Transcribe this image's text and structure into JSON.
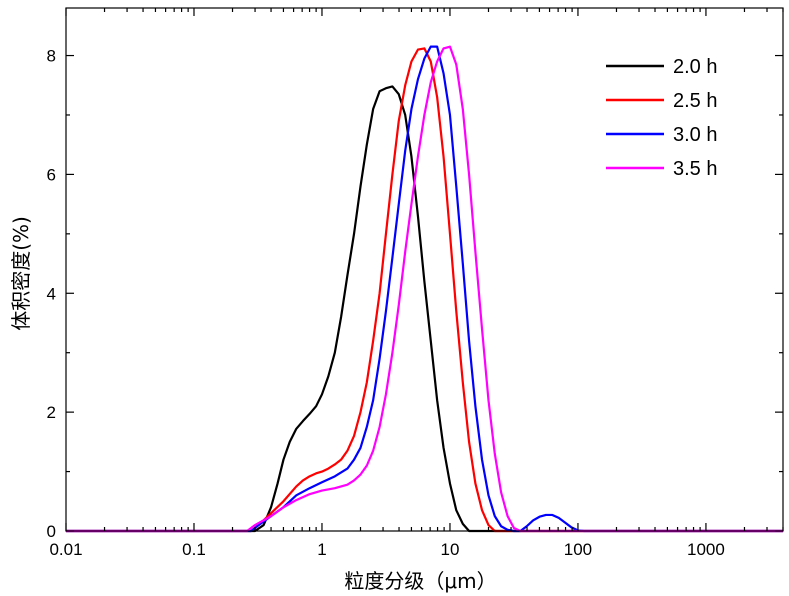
{
  "chart_data": {
    "type": "line",
    "title": "",
    "xlabel": "粒度分级（μm）",
    "ylabel": "体积密度(%)",
    "x_scale": "log",
    "xlim": [
      0.01,
      4000
    ],
    "ylim": [
      0,
      8.8
    ],
    "x_ticks": [
      {
        "value": 0.01,
        "label": "0.01"
      },
      {
        "value": 0.1,
        "label": "0.1"
      },
      {
        "value": 1,
        "label": "1"
      },
      {
        "value": 10,
        "label": "10"
      },
      {
        "value": 100,
        "label": "100"
      },
      {
        "value": 1000,
        "label": "1000"
      }
    ],
    "y_ticks": [
      {
        "value": 0,
        "label": "0"
      },
      {
        "value": 2,
        "label": "2"
      },
      {
        "value": 4,
        "label": "4"
      },
      {
        "value": 6,
        "label": "6"
      },
      {
        "value": 8,
        "label": "8"
      }
    ],
    "grid": false,
    "legend": "top-right",
    "series": [
      {
        "name": "2.0 h",
        "color": "#000000",
        "points": [
          [
            0.01,
            0
          ],
          [
            0.3,
            0
          ],
          [
            0.35,
            0.1
          ],
          [
            0.4,
            0.4
          ],
          [
            0.45,
            0.8
          ],
          [
            0.5,
            1.2
          ],
          [
            0.56,
            1.5
          ],
          [
            0.63,
            1.72
          ],
          [
            0.71,
            1.85
          ],
          [
            0.8,
            1.97
          ],
          [
            0.9,
            2.1
          ],
          [
            1.0,
            2.3
          ],
          [
            1.12,
            2.6
          ],
          [
            1.26,
            3.0
          ],
          [
            1.41,
            3.6
          ],
          [
            1.58,
            4.3
          ],
          [
            1.78,
            5.0
          ],
          [
            2.0,
            5.8
          ],
          [
            2.24,
            6.5
          ],
          [
            2.51,
            7.1
          ],
          [
            2.82,
            7.4
          ],
          [
            3.16,
            7.45
          ],
          [
            3.55,
            7.48
          ],
          [
            3.98,
            7.35
          ],
          [
            4.47,
            7.0
          ],
          [
            5.0,
            6.3
          ],
          [
            5.62,
            5.3
          ],
          [
            6.31,
            4.2
          ],
          [
            7.08,
            3.2
          ],
          [
            7.94,
            2.2
          ],
          [
            8.91,
            1.4
          ],
          [
            10.0,
            0.8
          ],
          [
            11.2,
            0.35
          ],
          [
            12.6,
            0.12
          ],
          [
            14.1,
            0
          ],
          [
            4000,
            0
          ]
        ]
      },
      {
        "name": "2.5 h",
        "color": "#ff0000",
        "points": [
          [
            0.01,
            0
          ],
          [
            0.28,
            0
          ],
          [
            0.32,
            0.1
          ],
          [
            0.4,
            0.3
          ],
          [
            0.5,
            0.5
          ],
          [
            0.63,
            0.75
          ],
          [
            0.71,
            0.85
          ],
          [
            0.8,
            0.92
          ],
          [
            0.9,
            0.97
          ],
          [
            1.0,
            1.0
          ],
          [
            1.12,
            1.05
          ],
          [
            1.26,
            1.12
          ],
          [
            1.41,
            1.2
          ],
          [
            1.58,
            1.35
          ],
          [
            1.78,
            1.6
          ],
          [
            2.0,
            2.0
          ],
          [
            2.24,
            2.5
          ],
          [
            2.51,
            3.2
          ],
          [
            2.82,
            4.0
          ],
          [
            3.16,
            5.0
          ],
          [
            3.55,
            6.0
          ],
          [
            3.98,
            6.9
          ],
          [
            4.47,
            7.5
          ],
          [
            5.0,
            7.9
          ],
          [
            5.62,
            8.1
          ],
          [
            6.31,
            8.12
          ],
          [
            7.08,
            7.9
          ],
          [
            7.94,
            7.3
          ],
          [
            8.91,
            6.3
          ],
          [
            10.0,
            5.0
          ],
          [
            11.2,
            3.7
          ],
          [
            12.6,
            2.5
          ],
          [
            14.1,
            1.5
          ],
          [
            15.8,
            0.8
          ],
          [
            17.8,
            0.35
          ],
          [
            20.0,
            0.1
          ],
          [
            22.4,
            0
          ],
          [
            4000,
            0
          ]
        ]
      },
      {
        "name": "3.0 h",
        "color": "#0000ff",
        "points": [
          [
            0.01,
            0
          ],
          [
            0.28,
            0
          ],
          [
            0.32,
            0.1
          ],
          [
            0.4,
            0.25
          ],
          [
            0.5,
            0.4
          ],
          [
            0.63,
            0.6
          ],
          [
            0.8,
            0.72
          ],
          [
            1.0,
            0.82
          ],
          [
            1.26,
            0.92
          ],
          [
            1.58,
            1.05
          ],
          [
            1.78,
            1.2
          ],
          [
            2.0,
            1.4
          ],
          [
            2.24,
            1.75
          ],
          [
            2.51,
            2.2
          ],
          [
            2.82,
            2.9
          ],
          [
            3.16,
            3.7
          ],
          [
            3.55,
            4.6
          ],
          [
            3.98,
            5.5
          ],
          [
            4.47,
            6.4
          ],
          [
            5.0,
            7.1
          ],
          [
            5.62,
            7.6
          ],
          [
            6.31,
            7.95
          ],
          [
            7.08,
            8.15
          ],
          [
            7.94,
            8.15
          ],
          [
            8.91,
            7.7
          ],
          [
            10.0,
            7.0
          ],
          [
            11.2,
            5.8
          ],
          [
            12.6,
            4.5
          ],
          [
            14.1,
            3.2
          ],
          [
            15.8,
            2.1
          ],
          [
            17.8,
            1.2
          ],
          [
            20.0,
            0.6
          ],
          [
            22.4,
            0.25
          ],
          [
            25.1,
            0.08
          ],
          [
            28.2,
            0.02
          ],
          [
            31.6,
            0
          ],
          [
            35.5,
            0
          ],
          [
            39.8,
            0.08
          ],
          [
            44.7,
            0.18
          ],
          [
            50.1,
            0.24
          ],
          [
            56.2,
            0.27
          ],
          [
            63.1,
            0.27
          ],
          [
            70.8,
            0.22
          ],
          [
            79.4,
            0.14
          ],
          [
            89.1,
            0.06
          ],
          [
            100,
            0.01
          ],
          [
            112,
            0
          ],
          [
            4000,
            0
          ]
        ]
      },
      {
        "name": "3.5 h",
        "color": "#ff00ff",
        "points": [
          [
            0.01,
            0
          ],
          [
            0.26,
            0
          ],
          [
            0.3,
            0.1
          ],
          [
            0.4,
            0.25
          ],
          [
            0.5,
            0.4
          ],
          [
            0.63,
            0.52
          ],
          [
            0.8,
            0.62
          ],
          [
            1.0,
            0.68
          ],
          [
            1.26,
            0.72
          ],
          [
            1.58,
            0.78
          ],
          [
            1.78,
            0.85
          ],
          [
            2.0,
            0.95
          ],
          [
            2.24,
            1.1
          ],
          [
            2.51,
            1.35
          ],
          [
            2.82,
            1.75
          ],
          [
            3.16,
            2.3
          ],
          [
            3.55,
            3.0
          ],
          [
            3.98,
            3.8
          ],
          [
            4.47,
            4.7
          ],
          [
            5.0,
            5.5
          ],
          [
            5.62,
            6.3
          ],
          [
            6.31,
            7.0
          ],
          [
            7.08,
            7.55
          ],
          [
            7.94,
            7.9
          ],
          [
            8.91,
            8.12
          ],
          [
            10.0,
            8.15
          ],
          [
            11.2,
            7.85
          ],
          [
            12.6,
            7.1
          ],
          [
            14.1,
            6.0
          ],
          [
            15.8,
            4.7
          ],
          [
            17.8,
            3.4
          ],
          [
            20.0,
            2.2
          ],
          [
            22.4,
            1.3
          ],
          [
            25.1,
            0.65
          ],
          [
            28.2,
            0.25
          ],
          [
            31.6,
            0.05
          ],
          [
            35.5,
            0
          ],
          [
            4000,
            0
          ]
        ]
      }
    ]
  }
}
